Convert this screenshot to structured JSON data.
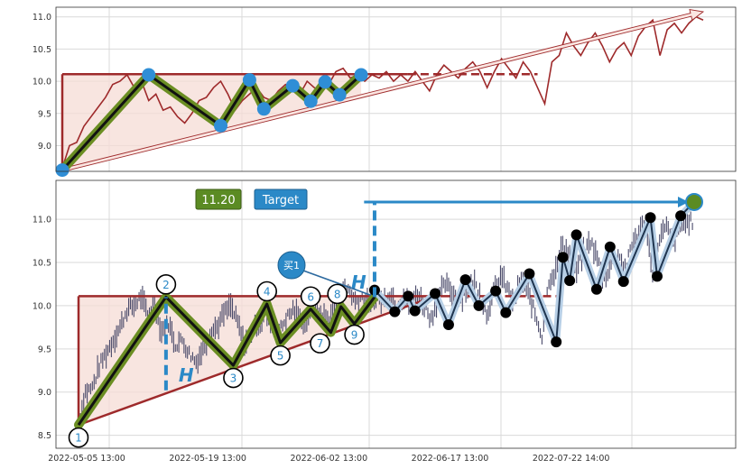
{
  "chart_data": [
    {
      "type": "line",
      "panel": "top",
      "ylim": [
        8.6,
        11.15
      ],
      "y_ticks": [
        "9.0",
        "9.5",
        "10.0",
        "10.5",
        "11.0"
      ],
      "y_tick_values": [
        9.0,
        9.5,
        10.0,
        10.5,
        11.0
      ],
      "grid": true,
      "close_series": [
        [
          0,
          8.65
        ],
        [
          2,
          9.0
        ],
        [
          4,
          9.05
        ],
        [
          6,
          9.3
        ],
        [
          8,
          9.45
        ],
        [
          10,
          9.6
        ],
        [
          12,
          9.75
        ],
        [
          14,
          9.95
        ],
        [
          16,
          10.0
        ],
        [
          18,
          10.1
        ],
        [
          20,
          9.9
        ],
        [
          22,
          10.0
        ],
        [
          24,
          9.7
        ],
        [
          26,
          9.8
        ],
        [
          28,
          9.55
        ],
        [
          30,
          9.6
        ],
        [
          32,
          9.45
        ],
        [
          34,
          9.35
        ],
        [
          36,
          9.5
        ],
        [
          38,
          9.7
        ],
        [
          40,
          9.75
        ],
        [
          42,
          9.9
        ],
        [
          44,
          10.0
        ],
        [
          46,
          9.8
        ],
        [
          48,
          9.55
        ],
        [
          50,
          9.7
        ],
        [
          52,
          9.8
        ],
        [
          54,
          9.9
        ],
        [
          56,
          9.75
        ],
        [
          58,
          9.7
        ],
        [
          60,
          9.85
        ],
        [
          62,
          9.95
        ],
        [
          64,
          9.85
        ],
        [
          66,
          9.8
        ],
        [
          68,
          10.0
        ],
        [
          70,
          9.9
        ],
        [
          72,
          9.85
        ],
        [
          74,
          9.95
        ],
        [
          76,
          10.15
        ],
        [
          78,
          10.2
        ],
        [
          80,
          10.05
        ],
        [
          82,
          10.1
        ],
        [
          84,
          10.0
        ],
        [
          86,
          10.1
        ],
        [
          88,
          10.05
        ],
        [
          90,
          10.15
        ],
        [
          92,
          10.0
        ],
        [
          94,
          10.1
        ],
        [
          96,
          10.0
        ],
        [
          98,
          10.15
        ],
        [
          100,
          10.0
        ],
        [
          102,
          9.85
        ],
        [
          104,
          10.1
        ],
        [
          106,
          10.25
        ],
        [
          108,
          10.15
        ],
        [
          110,
          10.05
        ],
        [
          112,
          10.2
        ],
        [
          114,
          10.3
        ],
        [
          116,
          10.15
        ],
        [
          118,
          9.9
        ],
        [
          120,
          10.15
        ],
        [
          122,
          10.35
        ],
        [
          124,
          10.2
        ],
        [
          126,
          10.05
        ],
        [
          128,
          10.3
        ],
        [
          130,
          10.15
        ],
        [
          132,
          9.9
        ],
        [
          134,
          9.65
        ],
        [
          136,
          10.3
        ],
        [
          138,
          10.4
        ],
        [
          140,
          10.75
        ],
        [
          142,
          10.55
        ],
        [
          144,
          10.4
        ],
        [
          146,
          10.6
        ],
        [
          148,
          10.75
        ],
        [
          150,
          10.55
        ],
        [
          152,
          10.3
        ],
        [
          154,
          10.5
        ],
        [
          156,
          10.6
        ],
        [
          158,
          10.4
        ],
        [
          160,
          10.7
        ],
        [
          162,
          10.85
        ],
        [
          164,
          10.95
        ],
        [
          166,
          10.4
        ],
        [
          168,
          10.8
        ],
        [
          170,
          10.9
        ],
        [
          172,
          10.75
        ],
        [
          174,
          10.9
        ],
        [
          176,
          11.0
        ],
        [
          178,
          10.95
        ]
      ],
      "pattern_pivots": [
        [
          0,
          8.62
        ],
        [
          24,
          10.1
        ],
        [
          44,
          9.31
        ],
        [
          52,
          10.02
        ],
        [
          56,
          9.57
        ],
        [
          64,
          9.93
        ],
        [
          69,
          9.69
        ],
        [
          73,
          9.99
        ],
        [
          77,
          9.79
        ],
        [
          83,
          10.1
        ]
      ],
      "resistance": {
        "x0": 0,
        "x1": 132,
        "value": 10.11
      },
      "wedge_arrow": {
        "x0": 0,
        "y0": 8.62,
        "x1": 178,
        "y1": 11.08
      }
    },
    {
      "type": "scatter",
      "panel": "bottom",
      "ylim": [
        8.35,
        11.45
      ],
      "y_ticks": [
        "8.5",
        "9.0",
        "9.5",
        "10.0",
        "10.5",
        "11.0"
      ],
      "y_tick_values": [
        8.5,
        9.0,
        9.5,
        10.0,
        10.5,
        11.0
      ],
      "x_ticks": [
        "2022-05-05 13:00",
        "2022-05-19 13:00",
        "2022-06-02 13:00",
        "2022-06-17 13:00",
        "2022-07-22 14:00"
      ],
      "x_tick_values": [
        0,
        36,
        72,
        108,
        144
      ],
      "grid": true,
      "pattern_points": [
        {
          "label": "1",
          "x": 0,
          "y": 8.62
        },
        {
          "label": "2",
          "x": 26,
          "y": 10.1
        },
        {
          "label": "3",
          "x": 46,
          "y": 9.31
        },
        {
          "label": "4",
          "x": 56,
          "y": 10.02
        },
        {
          "label": "5",
          "x": 60,
          "y": 9.57
        },
        {
          "label": "6",
          "x": 69,
          "y": 9.96
        },
        {
          "label": "7",
          "x": 75,
          "y": 9.69
        },
        {
          "label": "8",
          "x": 78,
          "y": 9.99
        },
        {
          "label": "9",
          "x": 82,
          "y": 9.79
        }
      ],
      "breakout_point": {
        "x": 88,
        "y": 10.1
      },
      "swing_points": [
        [
          88,
          10.18
        ],
        [
          94,
          9.93
        ],
        [
          98,
          10.11
        ],
        [
          100,
          9.94
        ],
        [
          106,
          10.14
        ],
        [
          110,
          9.78
        ],
        [
          115,
          10.3
        ],
        [
          119,
          10.0
        ],
        [
          124,
          10.17
        ],
        [
          127,
          9.92
        ],
        [
          134,
          10.37
        ],
        [
          142,
          9.58
        ],
        [
          144,
          10.56
        ],
        [
          146,
          10.29
        ],
        [
          148,
          10.82
        ],
        [
          154,
          10.19
        ],
        [
          158,
          10.68
        ],
        [
          162,
          10.28
        ],
        [
          170,
          11.02
        ],
        [
          172,
          10.34
        ],
        [
          179,
          11.04
        ],
        [
          183,
          11.2
        ]
      ],
      "resistance": {
        "x0": 0,
        "x1": 144,
        "value": 10.11
      },
      "wedge_support": {
        "x0": 0,
        "y0": 8.62,
        "x1": 106,
        "y1": 10.11
      },
      "height_marker": {
        "label": "H",
        "x": 26,
        "from": 9.02,
        "to": 10.1
      },
      "projection_marker": {
        "label": "H",
        "x": 88,
        "from": 10.1,
        "to": 11.2
      },
      "target": {
        "label": "Target",
        "value_label": "11.20",
        "value": 11.2,
        "x_start": 72,
        "x_end": 183
      },
      "buy_signal": {
        "label": "买1",
        "x": 88,
        "y": 10.1
      }
    }
  ],
  "colors": {
    "pattern_red": "#9e2a2b",
    "pattern_fill": "#f6dcd6",
    "zigzag_outer": "#6b8e23",
    "zigzag_inner": "#111111",
    "pivot_blue": "#2f8ed6",
    "close_line": "#9e2a2b",
    "target_blue": "#2b89c7",
    "value_green": "#5b8b23",
    "candle": "#4a4a6a",
    "swing_black": "#000000",
    "swing_band": "#b7cfe6",
    "grid": "#d9d9d9"
  }
}
